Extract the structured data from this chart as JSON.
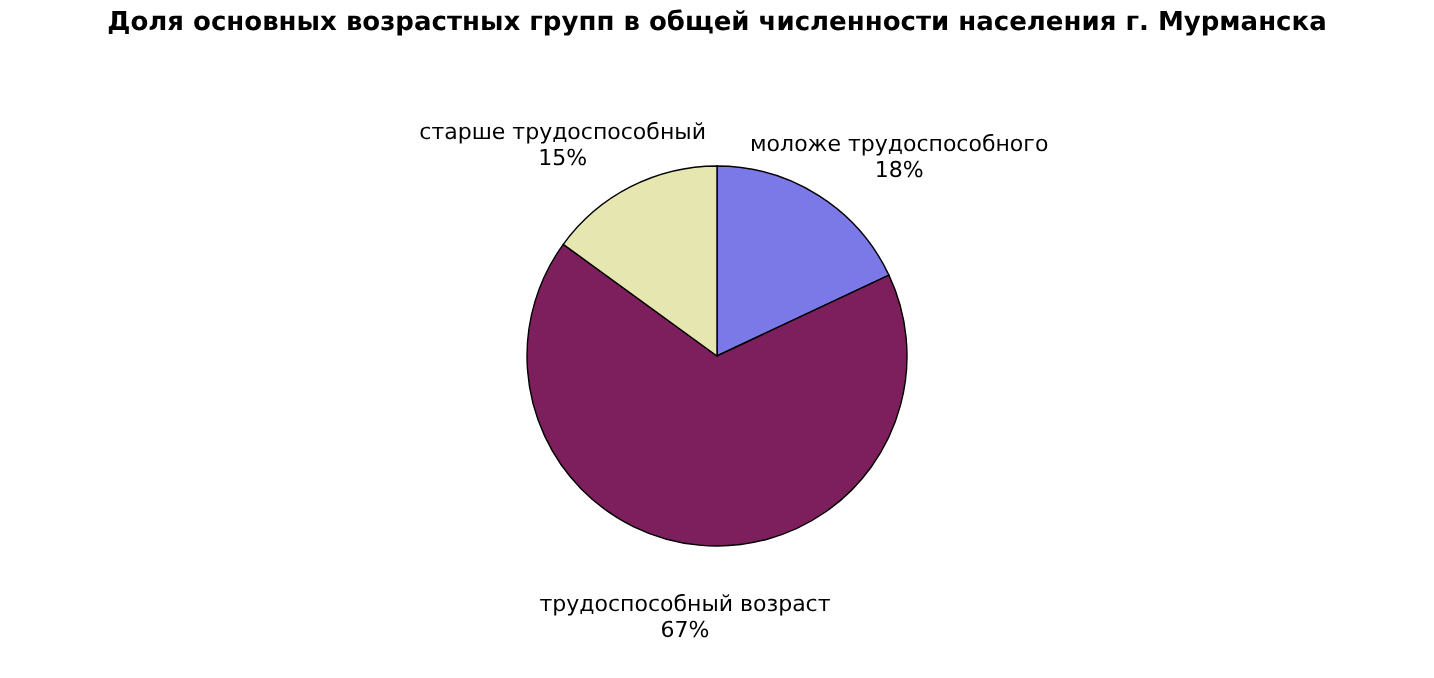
{
  "chart_data": {
    "type": "pie",
    "title": "Доля основных возрастных групп в общей численности населения г. Мурманска",
    "categories": [
      "моложе трудоспособного",
      "трудоспособный возраст",
      "старше трудоспособный"
    ],
    "values": [
      18,
      67,
      15
    ],
    "colors": [
      "#7b78e8",
      "#7d1f5c",
      "#e6e6b0"
    ],
    "value_labels": [
      "18%",
      "67%",
      "15%"
    ],
    "legend": false
  }
}
